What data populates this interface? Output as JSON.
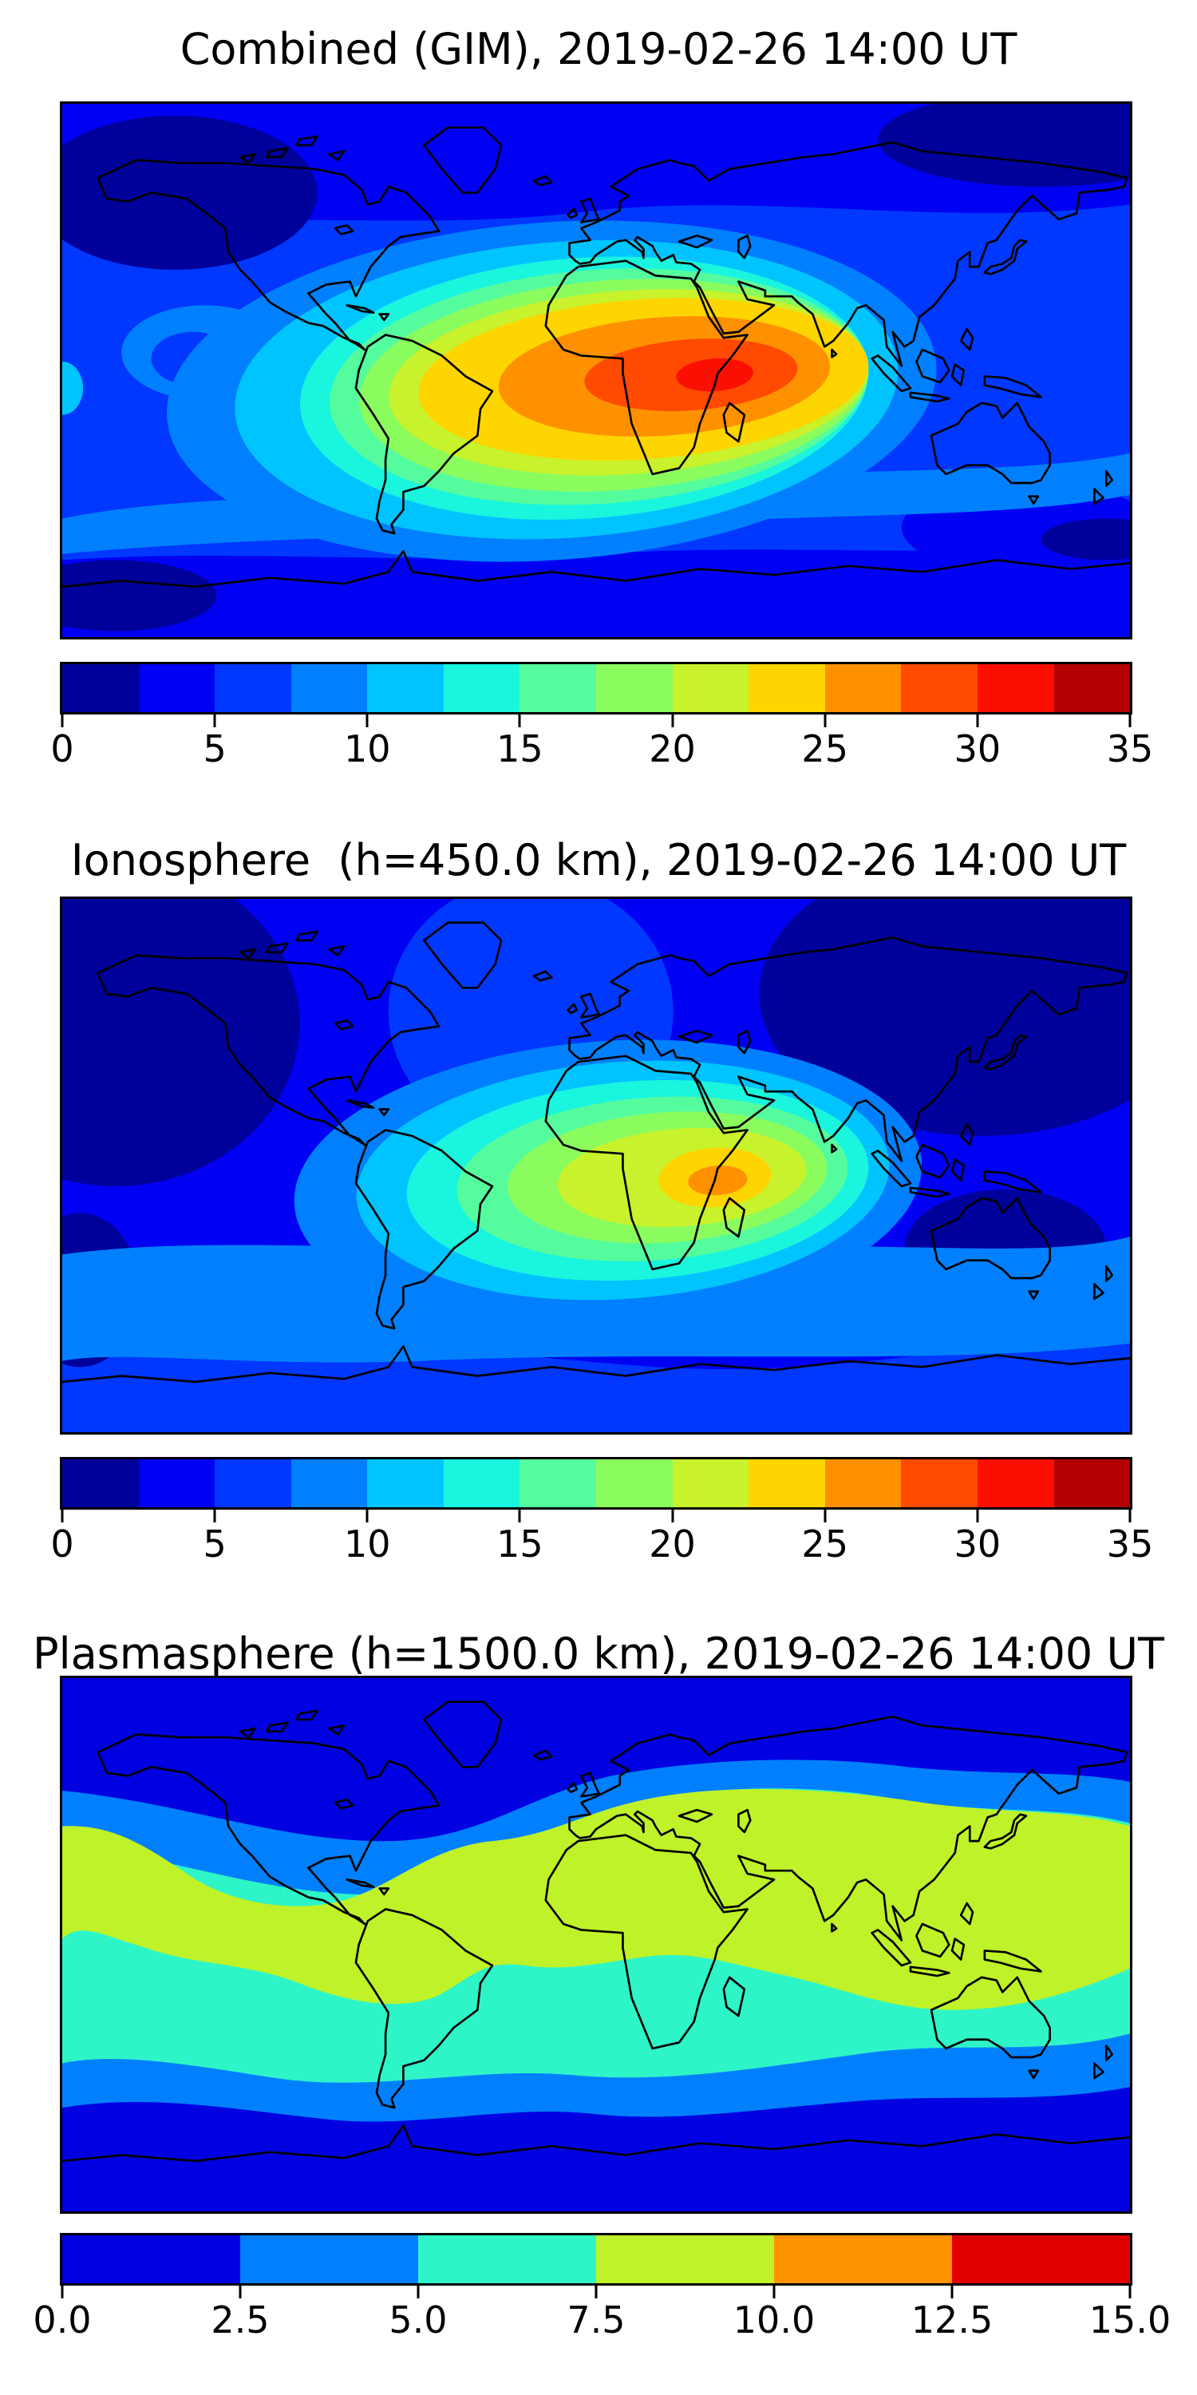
{
  "figure": {
    "background": "#ffffff",
    "panels": [
      {
        "id": "combined",
        "title": "Combined (GIM), 2019-02-26 14:00 UT",
        "colorbar": {
          "min": 0,
          "max": 35,
          "tick_labels": [
            "0",
            "5",
            "10",
            "15",
            "20",
            "25",
            "30",
            "35"
          ],
          "segment_colors": [
            "#00009b",
            "#0000f3",
            "#0038ff",
            "#0080ff",
            "#00c4ff",
            "#1af5de",
            "#55fc9e",
            "#8bfc5e",
            "#c8f22b",
            "#ffd500",
            "#ff9100",
            "#ff4a00",
            "#fb0f00",
            "#b40000"
          ]
        }
      },
      {
        "id": "ionosphere",
        "title": "Ionosphere  (h=450.0 km), 2019-02-26 14:00 UT",
        "colorbar": {
          "min": 0,
          "max": 35,
          "tick_labels": [
            "0",
            "5",
            "10",
            "15",
            "20",
            "25",
            "30",
            "35"
          ],
          "segment_colors": [
            "#00009b",
            "#0000f3",
            "#0038ff",
            "#0080ff",
            "#00c4ff",
            "#1af5de",
            "#55fc9e",
            "#8bfc5e",
            "#c8f22b",
            "#ffd500",
            "#ff9100",
            "#ff4a00",
            "#fb0f00",
            "#b40000"
          ]
        }
      },
      {
        "id": "plasmasphere",
        "title": "Plasmasphere (h=1500.0 km), 2019-02-26 14:00 UT",
        "colorbar": {
          "min": 0,
          "max": 15,
          "tick_labels": [
            "0.0",
            "2.5",
            "5.0",
            "7.5",
            "10.0",
            "12.5",
            "15.0"
          ],
          "segment_colors": [
            "#0000e0",
            "#0080ff",
            "#2ef5c8",
            "#bff228",
            "#ff9400",
            "#e00000"
          ]
        }
      }
    ]
  },
  "chart_data": [
    {
      "type": "heatmap",
      "subtype": "filled-contour world map, equirectangular projection, lon -180..180, lat -90..90",
      "title": "Combined (GIM), 2019-02-26 14:00 UT",
      "value_range": [
        0,
        35
      ],
      "contour_interval": 2.5,
      "colormap": "jet (14 discrete bands)",
      "colorbar_ticks": [
        0,
        5,
        10,
        15,
        20,
        25,
        30,
        35
      ],
      "legend_position": "horizontal colorbar below map",
      "peak": {
        "value": 31,
        "lon": 30,
        "lat": -5,
        "description": "TEC maximum (red, 27.5-32.5) over equatorial East Africa, elongated east-west"
      },
      "features": [
        "orange/yellow plume (20-27.5) stretching from eastern Brazil across the Atlantic, Africa and Arabia",
        "green/cyan rings (10-20) covering South America, the Atlantic, southern Europe and the Indian Ocean",
        "background 5-10 at mid latitudes",
        "minima <2.5 (dark navy) over Alaska/NW Canada, NE Siberia, and high southern-latitude patches"
      ]
    },
    {
      "type": "heatmap",
      "subtype": "filled-contour world map, equirectangular projection, lon -180..180, lat -90..90",
      "title": "Ionosphere  (h=450.0 km), 2019-02-26 14:00 UT",
      "value_range": [
        0,
        35
      ],
      "contour_interval": 2.5,
      "colormap": "jet (14 discrete bands)",
      "colorbar_ticks": [
        0,
        5,
        10,
        15,
        20,
        25,
        30,
        35
      ],
      "legend_position": "horizontal colorbar below map",
      "peak": {
        "value": 26,
        "lon": 38,
        "lat": -8,
        "description": "ionospheric TEC maximum (orange, 25-27.5) over East Africa / Mozambique channel"
      },
      "features": [
        "yellow-green blob (15-25) over central/southern Africa and the South Atlantic",
        "cyan/green halo (10-15) reaching northern South America",
        "large <2.5 (dark navy) regions over North Pacific/North America and over Siberia/East Asia, also SE of Australia",
        "southern ocean band 5-10"
      ]
    },
    {
      "type": "heatmap",
      "subtype": "filled-contour world map, equirectangular projection, lon -180..180, lat -90..90",
      "title": "Plasmasphere (h=1500.0 km), 2019-02-26 14:00 UT",
      "value_range": [
        0,
        15
      ],
      "contour_interval": 2.5,
      "colormap": "jet (6 discrete bands)",
      "colorbar_ticks": [
        0.0,
        2.5,
        5.0,
        7.5,
        10.0,
        12.5,
        15.0
      ],
      "legend_position": "horizontal colorbar below map",
      "peak": {
        "value": 9,
        "lon": null,
        "lat": 10,
        "description": "zonal yellow-green band (7.5-10) along low latitudes, widest over Eurasia/SE Asia, South America and the eastern Pacific"
      },
      "features": [
        "concentric zonal bands decreasing poleward: 5-7.5 turquoise, 2.5-5 blue, <2.5 dark blue at high latitudes",
        "no values above 10 anywhere on the map"
      ]
    }
  ]
}
